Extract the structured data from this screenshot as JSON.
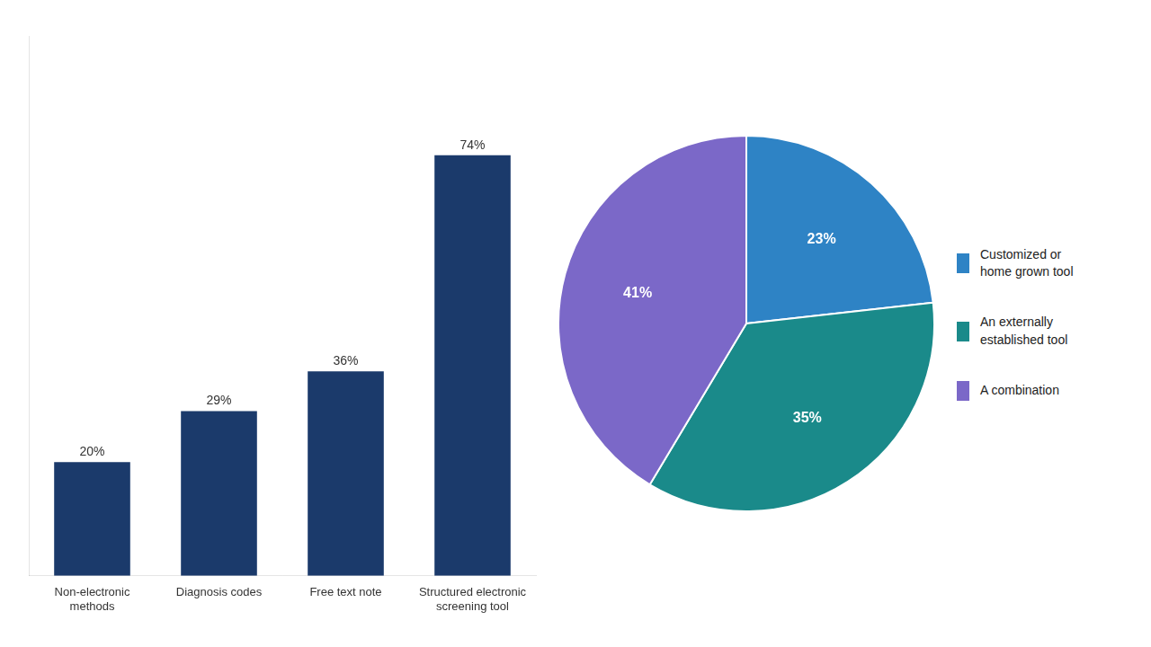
{
  "chart_data": [
    {
      "type": "bar",
      "categories": [
        "Non-electronic\nmethods",
        "Diagnosis codes",
        "Free text note",
        "Structured electronic\nscreening tool"
      ],
      "values": [
        20,
        29,
        36,
        74
      ],
      "value_labels": [
        "20%",
        "29%",
        "36%",
        "74%"
      ],
      "data_labels": true,
      "colors": [
        "#1b3a6b",
        "#1b3a6b",
        "#1b3a6b",
        "#1b3a6b"
      ],
      "ylim": [
        0,
        95
      ],
      "tick_labels": "x",
      "grid": false
    },
    {
      "type": "pie",
      "categories": [
        "Customized or\nhome grown tool",
        "An externally\nestablished tool",
        "A combination"
      ],
      "values": [
        23,
        35,
        41
      ],
      "value_labels": [
        "23%",
        "35%",
        "41%"
      ],
      "data_labels": true,
      "colors": [
        "#2e83c5",
        "#1a8a8a",
        "#7b68c8"
      ],
      "legend": "right"
    }
  ]
}
